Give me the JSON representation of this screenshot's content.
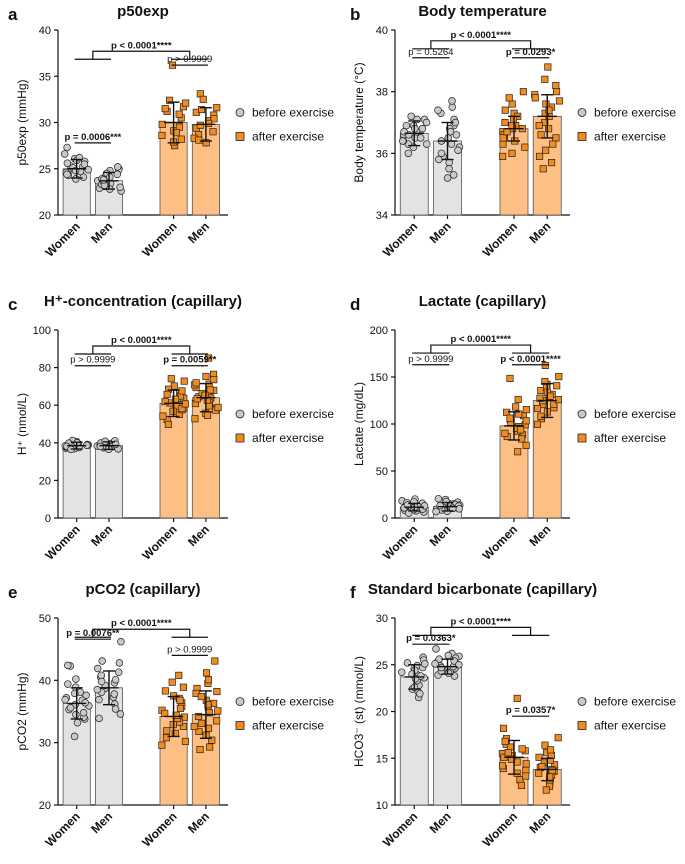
{
  "figure": {
    "colors": {
      "before": "#e3e3e3",
      "after": "#fdbf83",
      "after_marker": "#f28c1e",
      "before_marker": "#c9c9c9",
      "stroke": "#222222"
    },
    "legend_labels": [
      "before exercise",
      "after exercise"
    ],
    "categories": [
      "Women",
      "Men",
      "Women",
      "Men"
    ]
  },
  "chart_data": [
    {
      "id": "a",
      "panel_letter": "a",
      "type": "bar",
      "title": "p50exp",
      "ylabel": "p50exp (mmHg)",
      "ylim": [
        20,
        40
      ],
      "yticks": [
        "20",
        "25",
        "30",
        "35",
        "40"
      ],
      "ytick_values": [
        20,
        25,
        30,
        35,
        40
      ],
      "categories": [
        "Women",
        "Men",
        "Women",
        "Men"
      ],
      "series": [
        {
          "name": "before exercise",
          "categories": [
            "Women",
            "Men"
          ],
          "means": [
            25.0,
            23.7
          ],
          "sd": [
            1.0,
            0.9
          ]
        },
        {
          "name": "after exercise",
          "categories": [
            "Women",
            "Men"
          ],
          "means": [
            30.0,
            29.8
          ],
          "sd": [
            2.2,
            1.8
          ]
        }
      ],
      "points": [
        [
          25.2,
          24.6,
          26.1,
          25.8,
          24.3,
          25.5,
          27.3,
          24.9,
          25.0,
          24.1,
          26.6,
          25.3,
          24.7,
          25.9,
          24.4,
          25.1,
          26.2,
          24.8,
          23.9,
          25.6
        ],
        [
          23.4,
          24.2,
          23.1,
          24.8,
          22.9,
          23.7,
          25.0,
          23.3,
          24.5,
          22.6,
          23.9,
          24.1,
          23.0,
          24.9,
          23.6,
          22.8,
          24.4,
          23.2,
          25.2,
          23.8
        ],
        [
          36.2,
          32.4,
          31.7,
          29.8,
          30.5,
          28.6,
          27.5,
          31.2,
          29.1,
          28.2,
          30.9,
          32.1,
          27.9,
          29.5,
          31.5,
          28.9
        ],
        [
          33.1,
          31.6,
          30.2,
          29.4,
          28.7,
          30.8,
          29.0,
          28.3,
          31.1,
          29.7,
          30.4,
          28.1,
          32.5,
          29.9,
          27.8,
          31.4
        ]
      ],
      "brackets": [
        {
          "text": "p = 0.0006***",
          "bold": true,
          "top": 27.8
        },
        {
          "text": "p > 0.9999",
          "bold": false,
          "top": 36.2
        },
        {
          "text": "p < 0.0001****",
          "bold": true,
          "top": 37.7
        }
      ]
    },
    {
      "id": "b",
      "panel_letter": "b",
      "type": "bar",
      "title": "Body temperature",
      "ylabel": "Body temperature (°C)",
      "ylim": [
        34,
        40
      ],
      "yticks": [
        "34",
        "36",
        "38",
        "40"
      ],
      "ytick_values": [
        34,
        36,
        38,
        40
      ],
      "categories": [
        "Women",
        "Men",
        "Women",
        "Men"
      ],
      "series": [
        {
          "name": "before exercise",
          "categories": [
            "Women",
            "Men"
          ],
          "means": [
            36.65,
            36.4
          ],
          "sd": [
            0.4,
            0.6
          ]
        },
        {
          "name": "after exercise",
          "categories": [
            "Women",
            "Men"
          ],
          "means": [
            36.8,
            37.2
          ],
          "sd": [
            0.4,
            0.7
          ]
        }
      ],
      "points": [
        [
          36.8,
          36.5,
          37.1,
          36.3,
          36.9,
          36.6,
          37.2,
          36.4,
          36.7,
          36.0,
          37.0,
          36.6,
          36.2,
          36.9,
          36.5,
          36.8,
          36.3,
          37.1,
          36.7,
          36.4
        ],
        [
          36.9,
          35.7,
          37.5,
          36.2,
          37.7,
          36.4,
          35.3,
          36.8,
          35.9,
          37.1,
          36.5,
          36.0,
          37.3,
          35.5,
          36.7,
          36.3,
          37.0,
          35.8,
          36.6,
          37.4,
          36.1,
          35.2
        ],
        [
          37.3,
          36.9,
          36.5,
          37.6,
          36.2,
          37.0,
          36.7,
          38.0,
          36.4,
          36.8,
          37.2,
          35.9,
          36.6,
          37.4,
          36.3,
          37.1,
          36.8,
          36.5,
          37.8,
          36.0,
          36.9,
          36.7
        ],
        [
          38.8,
          37.2,
          36.5,
          37.9,
          35.7,
          37.5,
          38.2,
          36.8,
          37.0,
          36.3,
          37.7,
          38.4,
          36.1,
          37.3,
          37.8,
          35.5,
          36.9,
          37.6,
          38.0,
          36.6,
          37.4,
          35.9
        ]
      ],
      "brackets": [
        {
          "text": "p = 0.5264",
          "bold": false,
          "top": 39.1
        },
        {
          "text": "p = 0.0293*",
          "bold": true,
          "top": 39.1
        },
        {
          "text": "p < 0.0001****",
          "bold": true,
          "top": 39.65
        }
      ]
    },
    {
      "id": "c",
      "panel_letter": "c",
      "type": "bar",
      "title": "H⁺-concentration (capillary)",
      "ylabel": "H⁺ (nmol/L)",
      "ylim": [
        0,
        100
      ],
      "yticks": [
        "0",
        "20",
        "40",
        "60",
        "80",
        "100"
      ],
      "ytick_values": [
        0,
        20,
        40,
        60,
        80,
        100
      ],
      "categories": [
        "Women",
        "Men",
        "Women",
        "Men"
      ],
      "series": [
        {
          "name": "before exercise",
          "categories": [
            "Women",
            "Men"
          ],
          "means": [
            38.5,
            38.5
          ],
          "sd": [
            1.8,
            2.0
          ]
        },
        {
          "name": "after exercise",
          "categories": [
            "Women",
            "Men"
          ],
          "means": [
            61.0,
            64.0
          ],
          "sd": [
            7.0,
            7.5
          ]
        }
      ],
      "points": [
        [
          38.0,
          39.5,
          37.2,
          40.6,
          38.8,
          36.9,
          39.1,
          37.8,
          41.2,
          38.4,
          37.5,
          39.8,
          38.1,
          36.5,
          40.0,
          38.7
        ],
        [
          38.3,
          40.2,
          37.4,
          39.6,
          36.8,
          41.1,
          38.9,
          37.9,
          39.2,
          40.5,
          37.1,
          38.6,
          39.9,
          36.6,
          38.1,
          40.8
        ],
        [
          62.0,
          58.5,
          66.4,
          55.1,
          70.2,
          60.3,
          63.7,
          52.4,
          68.5,
          57.6,
          61.2,
          64.9,
          54.2,
          72.8,
          59.4,
          65.7,
          56.8,
          74.1,
          61.9,
          49.8,
          63.2,
          67.6,
          58.2,
          60.7
        ],
        [
          85.1,
          76.4,
          66.5,
          71.2,
          58.3,
          63.8,
          69.4,
          55.7,
          73.6,
          61.2,
          67.9,
          52.8,
          64.5,
          70.8,
          59.6,
          66.2,
          62.7,
          75.3,
          57.4,
          68.1,
          60.9,
          65.3,
          54.6,
          71.9,
          63.4,
          58.8
        ]
      ],
      "brackets": [
        {
          "text": "p > 0.9999",
          "bold": false,
          "top": 81.0
        },
        {
          "text": "p = 0.0059**",
          "bold": true,
          "top": 81.0
        },
        {
          "text": "p < 0.0001****",
          "bold": true,
          "top": 91.5
        }
      ]
    },
    {
      "id": "d",
      "panel_letter": "d",
      "type": "bar",
      "title": "Lactate (capillary)",
      "ylabel": "Lactate (mg/dL)",
      "ylim": [
        0,
        200
      ],
      "yticks": [
        "0",
        "50",
        "100",
        "150",
        "200"
      ],
      "ytick_values": [
        0,
        50,
        100,
        150,
        200
      ],
      "categories": [
        "Women",
        "Men",
        "Women",
        "Men"
      ],
      "series": [
        {
          "name": "before exercise",
          "categories": [
            "Women",
            "Men"
          ],
          "means": [
            11.5,
            12.0
          ],
          "sd": [
            4.0,
            4.5
          ]
        },
        {
          "name": "after exercise",
          "categories": [
            "Women",
            "Men"
          ],
          "means": [
            98.0,
            125.0
          ],
          "sd": [
            15.0,
            18.0
          ]
        }
      ],
      "points": [
        [
          10.2,
          14.5,
          8.1,
          18.3,
          12.0,
          6.4,
          20.1,
          11.3,
          9.5,
          15.7,
          13.2,
          7.6,
          16.4,
          10.8,
          5.2,
          12.9,
          17.2,
          9.0,
          11.7,
          13.8
        ],
        [
          11.1,
          15.2,
          9.3,
          19.6,
          12.4,
          7.2,
          16.8,
          10.5,
          13.7,
          8.6,
          14.3,
          20.5,
          11.9,
          6.8,
          15.9,
          12.6,
          9.8,
          17.5,
          10.2,
          13.1
        ],
        [
          148.5,
          126.1,
          112.4,
          104.7,
          97.3,
          88.6,
          118.2,
          92.5,
          101.8,
          84.1,
          108.9,
          95.4,
          77.2,
          110.6,
          99.2,
          86.7,
          115.3,
          93.8,
          103.4,
          70.5,
          90.1,
          106.2
        ],
        [
          162.3,
          150.4,
          142.1,
          135.6,
          128.2,
          120.7,
          131.5,
          112.9,
          124.8,
          117.3,
          138.9,
          105.6,
          127.4,
          145.2,
          121.1,
          99.7,
          133.8,
          116.5,
          129.6,
          108.3,
          140.7,
          125.9
        ]
      ],
      "brackets": [
        {
          "text": "p > 0.9999",
          "bold": false,
          "top": 163.0
        },
        {
          "text": "p < 0.0001****",
          "bold": true,
          "top": 163.0
        },
        {
          "text": "p < 0.0001****",
          "bold": true,
          "top": 184.0
        }
      ]
    },
    {
      "id": "e",
      "panel_letter": "e",
      "type": "bar",
      "title": "pCO2 (capillary)",
      "ylabel": "pCO2 (mmHg)",
      "ylim": [
        20,
        50
      ],
      "yticks": [
        "20",
        "30",
        "40",
        "50"
      ],
      "ytick_values": [
        20,
        30,
        40,
        50
      ],
      "categories": [
        "Women",
        "Men",
        "Women",
        "Men"
      ],
      "series": [
        {
          "name": "before exercise",
          "categories": [
            "Women",
            "Men"
          ],
          "means": [
            36.3,
            38.8
          ],
          "sd": [
            2.5,
            2.7
          ]
        },
        {
          "name": "after exercise",
          "categories": [
            "Women",
            "Men"
          ],
          "means": [
            34.2,
            34.5
          ],
          "sd": [
            3.2,
            3.8
          ]
        }
      ],
      "points": [
        [
          42.3,
          38.9,
          36.1,
          40.2,
          34.5,
          37.6,
          33.8,
          35.9,
          39.4,
          36.8,
          34.1,
          37.2,
          31.0,
          35.3,
          38.1,
          36.4,
          33.2,
          37.9,
          35.6,
          42.4,
          34.8,
          36.9
        ],
        [
          46.2,
          42.8,
          40.5,
          38.7,
          41.9,
          37.3,
          39.6,
          36.2,
          43.1,
          38.1,
          35.4,
          40.8,
          37.8,
          39.2,
          34.6,
          41.3,
          38.5,
          36.9,
          40.1,
          33.9,
          39.8
        ],
        [
          40.8,
          37.5,
          35.2,
          32.6,
          38.9,
          34.1,
          30.2,
          36.4,
          33.3,
          39.7,
          31.5,
          35.8,
          34.7,
          29.6,
          37.1,
          32.9,
          36.8,
          30.8,
          33.9,
          38.3,
          35.5,
          31.9,
          34.4
        ],
        [
          43.1,
          41.2,
          38.7,
          36.3,
          33.5,
          39.5,
          31.8,
          35.1,
          37.9,
          30.4,
          34.2,
          36.8,
          32.6,
          40.1,
          29.3,
          35.7,
          33.1,
          38.2,
          31.2,
          36.1,
          34.8,
          28.9,
          37.4,
          32.3
        ]
      ],
      "brackets": [
        {
          "text": "p = 0.0076**",
          "bold": true,
          "top": 46.6
        },
        {
          "text": "p > 0.9999",
          "bold": false,
          "top": 44.0
        },
        {
          "text": "p < 0.0001****",
          "bold": true,
          "top": 48.2
        }
      ]
    },
    {
      "id": "f",
      "panel_letter": "f",
      "type": "bar",
      "title": "Standard bicarbonate (capillary)",
      "ylabel": "HCO3⁻ (st) (mmol/L)",
      "ylim": [
        10,
        30
      ],
      "yticks": [
        "10",
        "15",
        "20",
        "25",
        "30"
      ],
      "ytick_values": [
        10,
        15,
        20,
        25,
        30
      ],
      "categories": [
        "Women",
        "Men",
        "Women",
        "Men"
      ],
      "series": [
        {
          "name": "before exercise",
          "categories": [
            "Women",
            "Men"
          ],
          "means": [
            23.7,
            24.8
          ],
          "sd": [
            1.3,
            0.8
          ]
        },
        {
          "name": "after exercise",
          "categories": [
            "Women",
            "Men"
          ],
          "means": [
            15.1,
            13.8
          ],
          "sd": [
            1.8,
            1.2
          ]
        }
      ],
      "points": [
        [
          25.8,
          24.6,
          23.1,
          22.4,
          24.9,
          23.6,
          21.5,
          25.2,
          24.2,
          22.8,
          23.9,
          25.5,
          22.1,
          24.4,
          23.3,
          21.9,
          24.7,
          23.8,
          25.1,
          22.6,
          24.0,
          23.5
        ],
        [
          26.7,
          25.3,
          24.6,
          25.9,
          23.8,
          24.9,
          25.6,
          24.2,
          26.2,
          24.5,
          25.1,
          23.9,
          25.7,
          24.8,
          26.0,
          24.3,
          25.4,
          24.1,
          25.0,
          24.7
        ],
        [
          21.4,
          18.2,
          16.5,
          15.3,
          14.6,
          17.1,
          13.9,
          15.8,
          12.7,
          16.2,
          14.2,
          15.5,
          13.4,
          16.8,
          14.9,
          12.1,
          15.1,
          13.7,
          16.0,
          14.4,
          15.6,
          13.1
        ],
        [
          17.2,
          16.4,
          15.1,
          14.3,
          13.6,
          12.8,
          14.8,
          13.2,
          15.6,
          12.3,
          14.0,
          13.8,
          15.3,
          12.6,
          14.5,
          13.4,
          12.0,
          14.1,
          13.0,
          15.9,
          13.7,
          11.6
        ]
      ],
      "brackets": [
        {
          "text": "p = 0.0363*",
          "bold": true,
          "top": 27.2
        },
        {
          "text": "p = 0.0357*",
          "bold": true,
          "top": 19.5
        },
        {
          "text": "p < 0.0001****",
          "bold": true,
          "top": 29.0
        }
      ]
    }
  ]
}
